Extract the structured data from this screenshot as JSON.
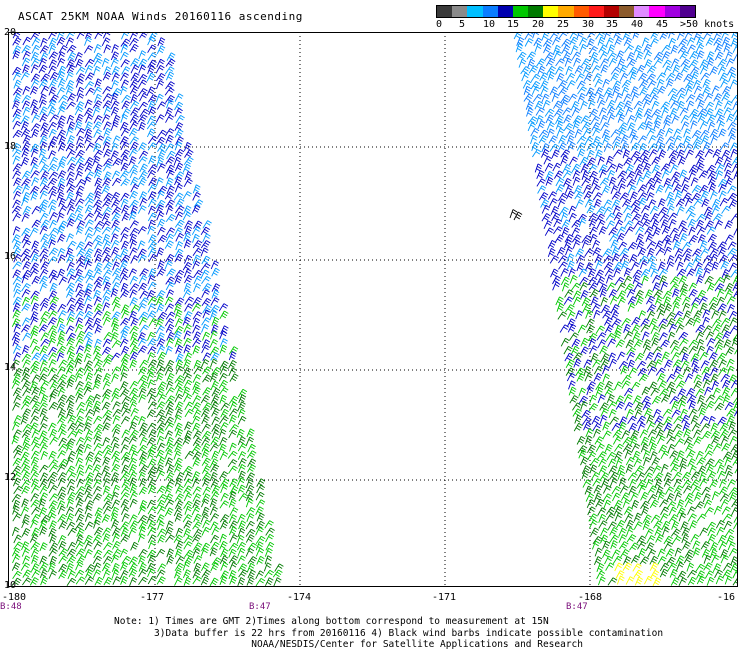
{
  "title": "ASCAT 25KM NOAA Winds 20160116 ascending",
  "legend": {
    "colors": [
      "#3a3a3a",
      "#8a8a8a",
      "#00bfff",
      "#0a7dff",
      "#0000b0",
      "#00c800",
      "#007a00",
      "#ffff00",
      "#ffaa00",
      "#ff5a00",
      "#ff1a1a",
      "#b30000",
      "#8b5a2b",
      "#e08bff",
      "#ff00ff",
      "#a000e0",
      "#500090"
    ],
    "labels": [
      "0",
      "5",
      "10",
      "15",
      "20",
      "25",
      "30",
      "35",
      "40",
      "45",
      ">50 knots"
    ]
  },
  "axes": {
    "y_labels": [
      "20",
      "18",
      "16",
      "14",
      "12",
      "10"
    ],
    "x_labels": [
      "-180",
      "-177",
      "-174",
      "-171",
      "-168",
      "-16"
    ]
  },
  "pass_times": [
    "B:48",
    "B:47",
    "B:47"
  ],
  "notes": [
    "Note: 1) Times are GMT 2)Times along bottom correspond to measurement at 15N",
    "       3)Data buffer is 22 hrs from 20160116 4) Black wind barbs indicate possible contamination",
    "                        NOAA/NESDIS/Center for Satellite Applications and Research"
  ],
  "map": {
    "lon_range": [
      -180,
      -165.5
    ],
    "lat_range": [
      10,
      20
    ]
  }
}
